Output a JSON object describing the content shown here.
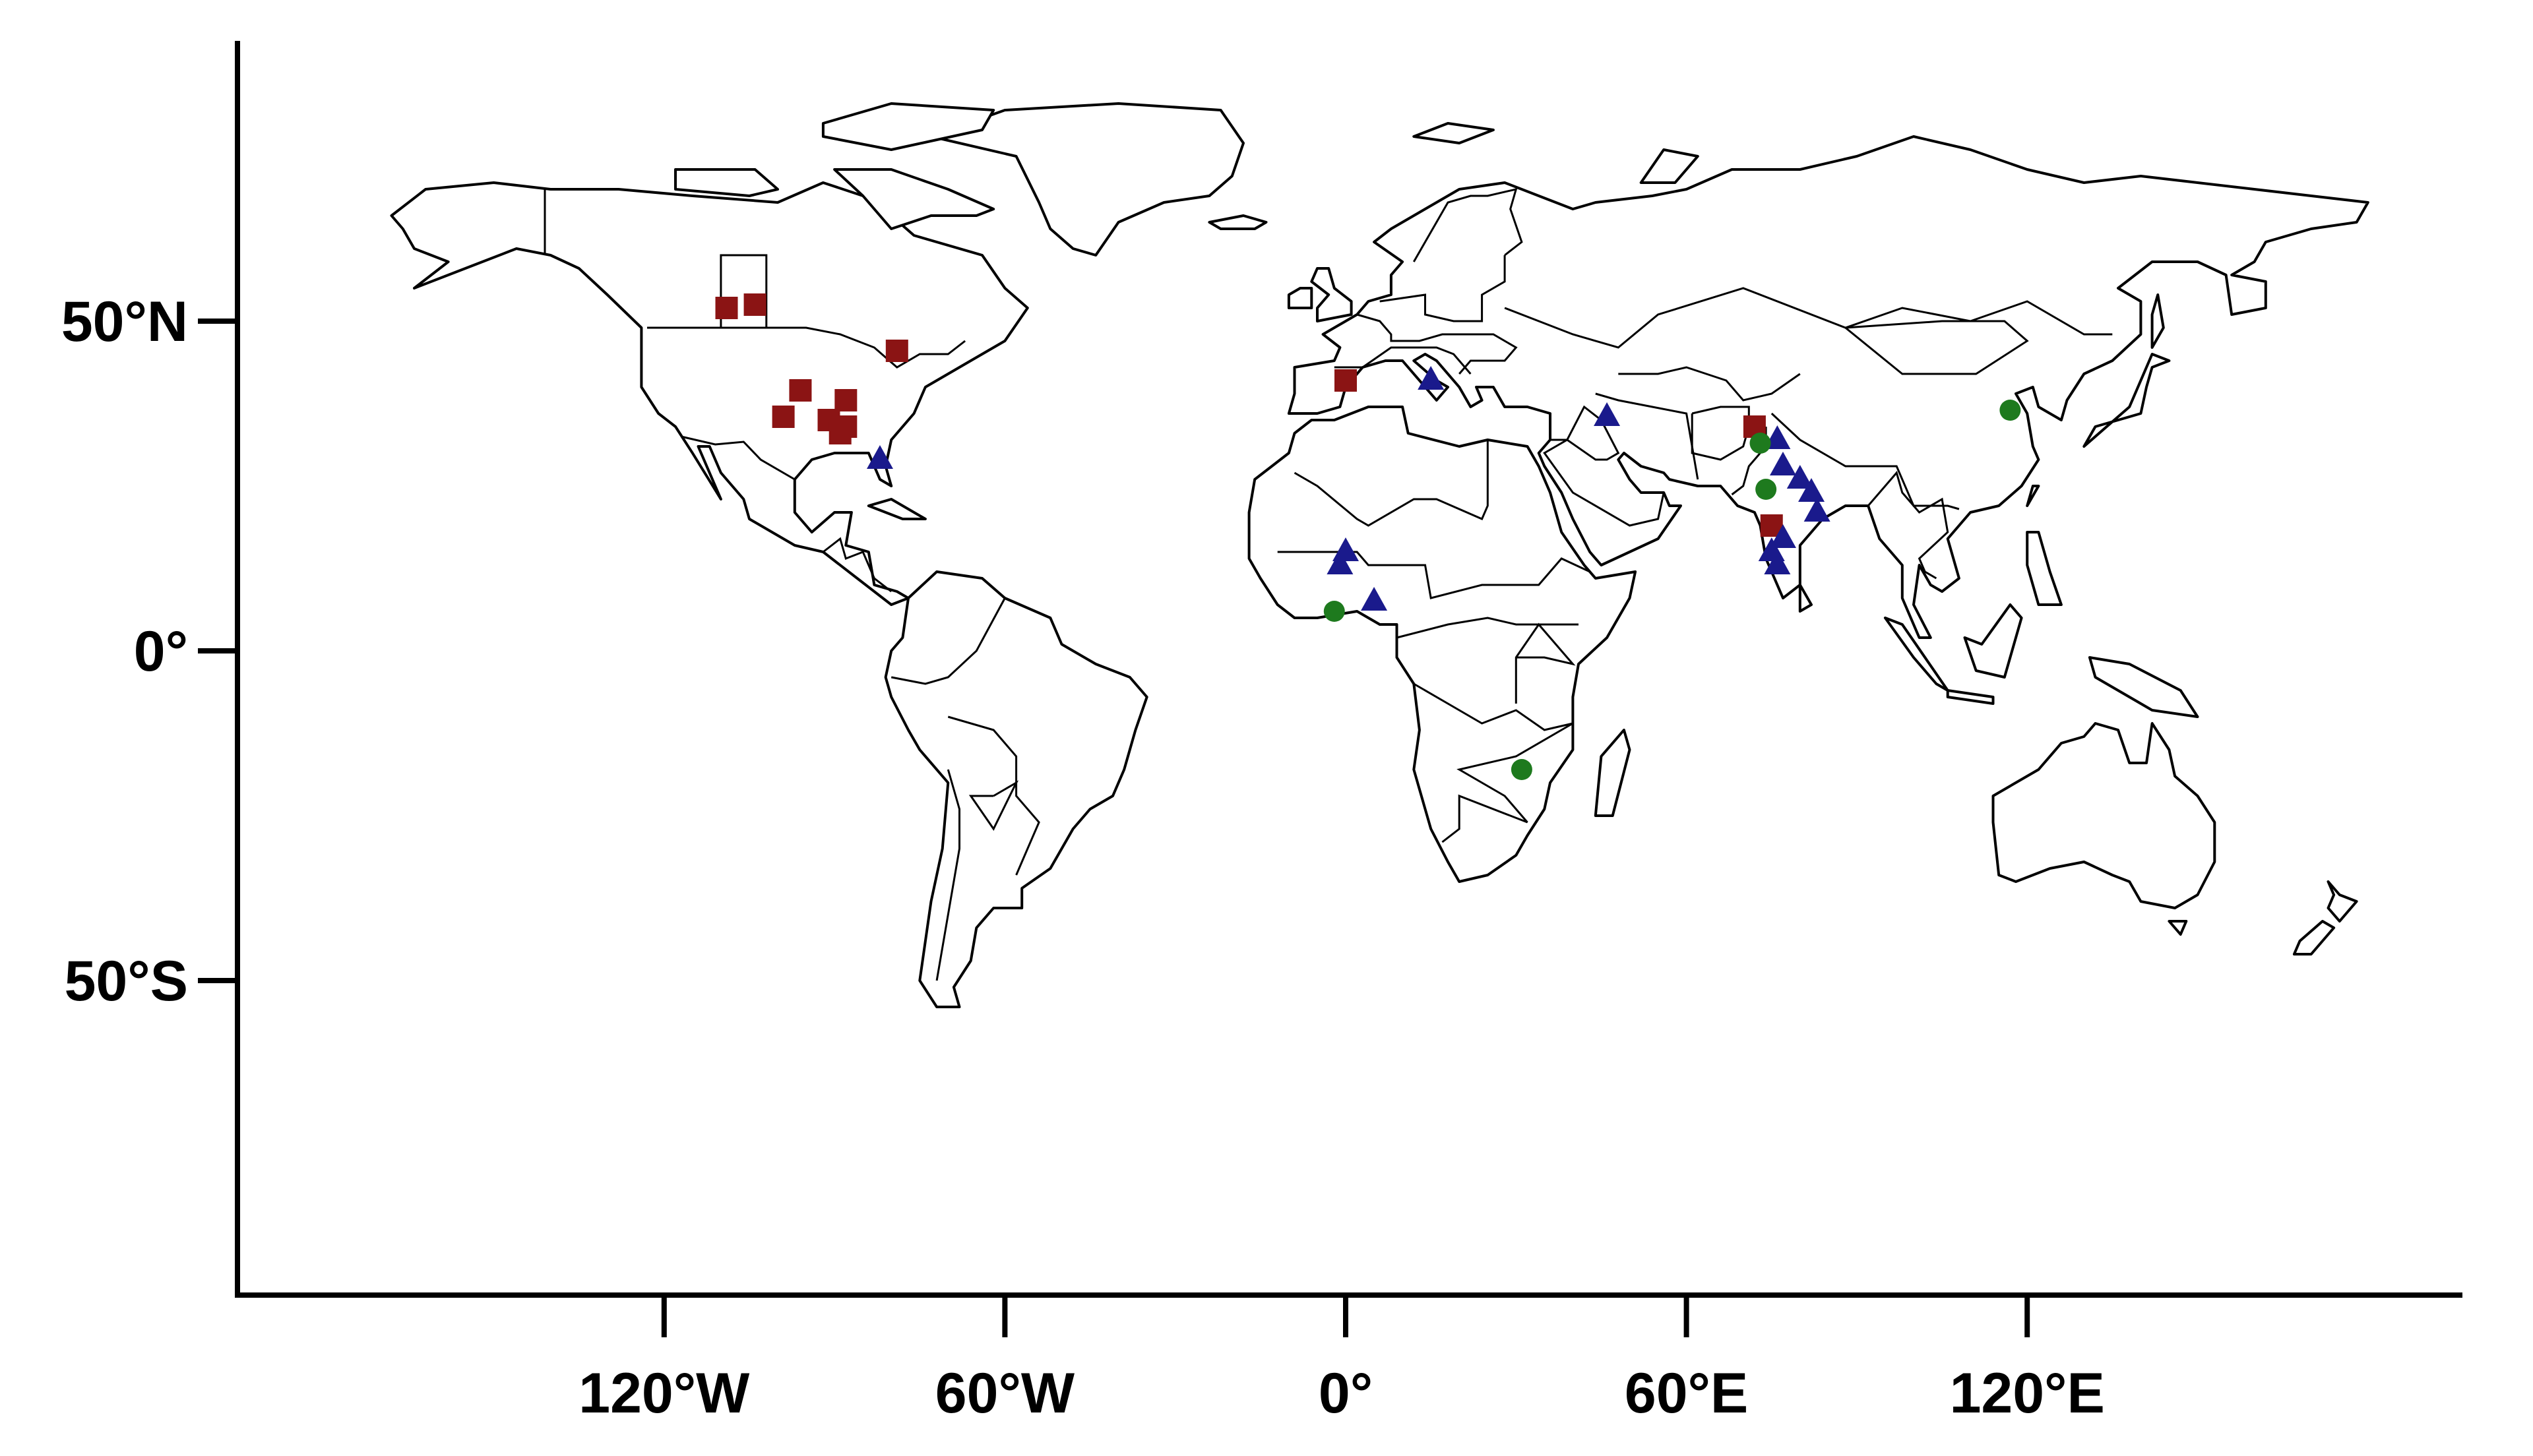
{
  "chart_data": {
    "type": "scatter",
    "title": "",
    "xlabel": "",
    "ylabel": "",
    "projection": "plate-carree",
    "xlim": [
      -180,
      180
    ],
    "ylim": [
      -90,
      90
    ],
    "grid": false,
    "x_ticks": [
      {
        "value": -120,
        "label": "120°W"
      },
      {
        "value": -60,
        "label": "60°W"
      },
      {
        "value": 0,
        "label": "0°"
      },
      {
        "value": 60,
        "label": "60°E"
      },
      {
        "value": 120,
        "label": "120°E"
      }
    ],
    "y_ticks": [
      {
        "value": 50,
        "label": "50°N"
      },
      {
        "value": 0,
        "label": "0°"
      },
      {
        "value": -50,
        "label": "50°S"
      }
    ],
    "series": [
      {
        "marker": "square",
        "color": "#8b1414",
        "points": [
          {
            "lon": -109,
            "lat": 52
          },
          {
            "lon": -104,
            "lat": 52.5
          },
          {
            "lon": -79,
            "lat": 45.5
          },
          {
            "lon": -96,
            "lat": 39.5
          },
          {
            "lon": -99,
            "lat": 35.5
          },
          {
            "lon": -88,
            "lat": 38
          },
          {
            "lon": -91,
            "lat": 35
          },
          {
            "lon": -88,
            "lat": 34
          },
          {
            "lon": -89,
            "lat": 33
          },
          {
            "lon": 0,
            "lat": 41
          },
          {
            "lon": 72,
            "lat": 34
          },
          {
            "lon": 75,
            "lat": 19
          }
        ]
      },
      {
        "marker": "triangle",
        "color": "#1a1a8c",
        "points": [
          {
            "lon": -82,
            "lat": 29
          },
          {
            "lon": 15,
            "lat": 41
          },
          {
            "lon": 46,
            "lat": 35.5
          },
          {
            "lon": 0,
            "lat": 15
          },
          {
            "lon": -1,
            "lat": 13
          },
          {
            "lon": 5,
            "lat": 7.5
          },
          {
            "lon": 76,
            "lat": 32
          },
          {
            "lon": 77,
            "lat": 28
          },
          {
            "lon": 80,
            "lat": 26
          },
          {
            "lon": 82,
            "lat": 24
          },
          {
            "lon": 83,
            "lat": 21
          },
          {
            "lon": 77,
            "lat": 17
          },
          {
            "lon": 75,
            "lat": 15
          },
          {
            "lon": 76,
            "lat": 13
          }
        ]
      },
      {
        "marker": "circle",
        "color": "#1e7a1e",
        "points": [
          {
            "lon": -2,
            "lat": 6
          },
          {
            "lon": 31,
            "lat": -18
          },
          {
            "lon": 73,
            "lat": 31.5
          },
          {
            "lon": 74,
            "lat": 24.5
          },
          {
            "lon": 117,
            "lat": 36.5
          }
        ]
      }
    ]
  }
}
